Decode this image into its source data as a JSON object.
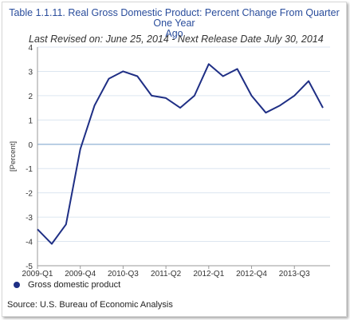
{
  "chart_data": {
    "type": "line",
    "title_line1": "Table 1.1.11. Real Gross Domestic Product: Percent Change From Quarter One Year",
    "title_line2": "Ago",
    "subtitle": "Last Revised on: June 25, 2014 - Next Release Date July 30, 2014",
    "ylabel": "[Percent]",
    "xlabel": "",
    "ylim": [
      -5,
      4
    ],
    "yticks": [
      "4",
      "3",
      "2",
      "1",
      "0",
      "-1",
      "-2",
      "-3",
      "-4",
      "-5"
    ],
    "xtick_labels": [
      "2009-Q1",
      "2009-Q4",
      "2010-Q3",
      "2011-Q2",
      "2012-Q1",
      "2012-Q4",
      "2013-Q3"
    ],
    "categories": [
      "2009-Q1",
      "2009-Q2",
      "2009-Q3",
      "2009-Q4",
      "2010-Q1",
      "2010-Q2",
      "2010-Q3",
      "2010-Q4",
      "2011-Q1",
      "2011-Q2",
      "2011-Q3",
      "2011-Q4",
      "2012-Q1",
      "2012-Q2",
      "2012-Q3",
      "2012-Q4",
      "2013-Q1",
      "2013-Q2",
      "2013-Q3",
      "2013-Q4",
      "2014-Q1"
    ],
    "grid": true,
    "legend_position": "bottom-left",
    "series": [
      {
        "name": "Gross domestic product",
        "color": "#1f2f85",
        "values": [
          -3.5,
          -4.1,
          -3.3,
          -0.2,
          1.6,
          2.7,
          3.0,
          2.8,
          2.0,
          1.9,
          1.5,
          2.0,
          3.3,
          2.8,
          3.1,
          2.0,
          1.3,
          1.6,
          2.0,
          2.6,
          1.5
        ]
      }
    ]
  },
  "source": "Source: U.S. Bureau of Economic Analysis"
}
